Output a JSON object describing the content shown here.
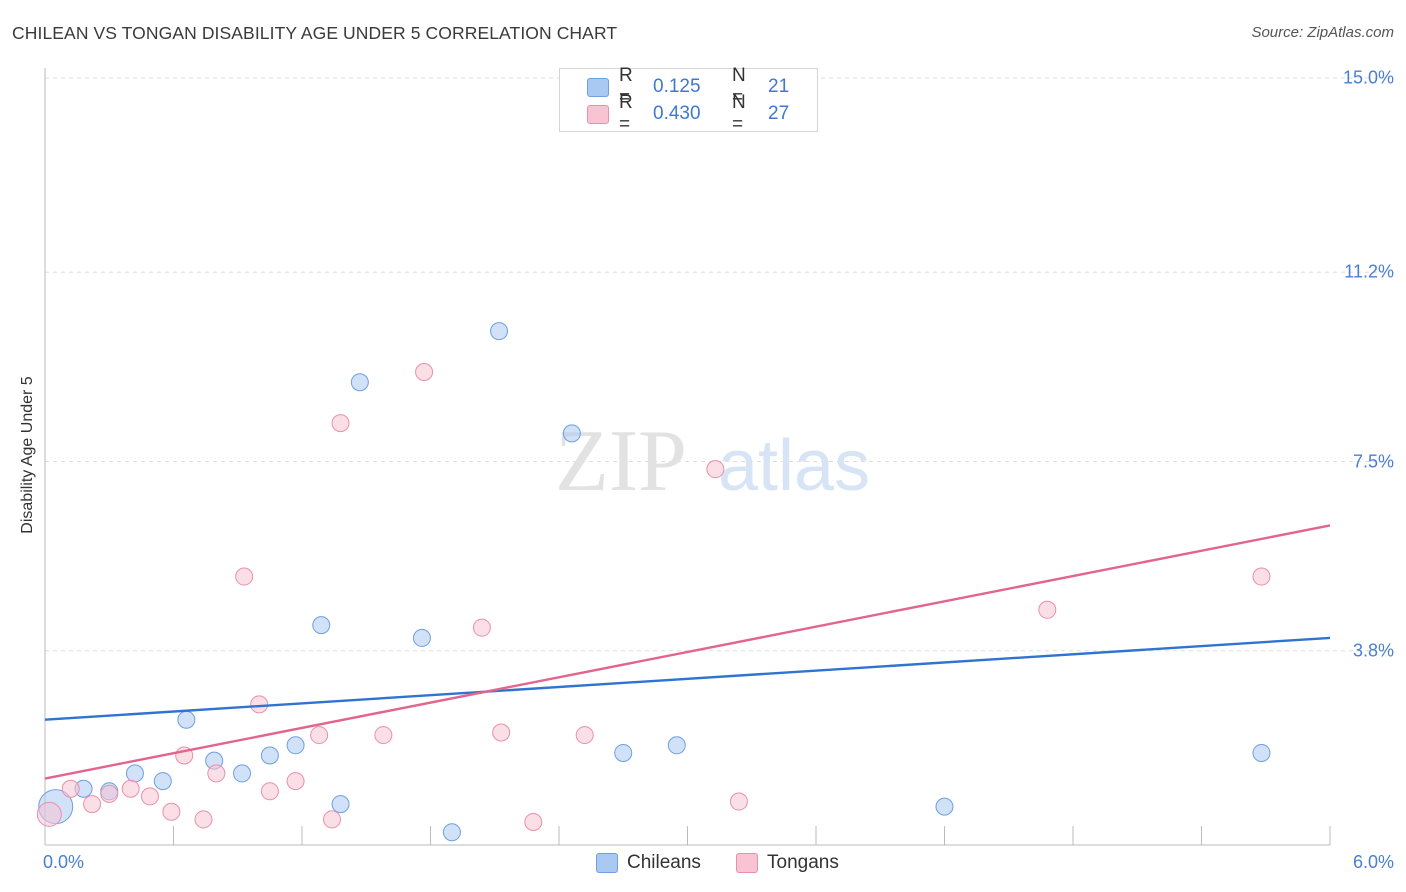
{
  "header": {
    "title": "CHILEAN VS TONGAN DISABILITY AGE UNDER 5 CORRELATION CHART",
    "source": "Source: ZipAtlas.com"
  },
  "watermark": {
    "zip": "ZIP",
    "atlas": "atlas"
  },
  "legend": {
    "rows": [
      {
        "name": "Chileans",
        "r_label": "R =",
        "r_value": "0.125",
        "n_label": "N =",
        "n_value": "21",
        "color": "#a9c8f2",
        "border": "#6f9fe0"
      },
      {
        "name": "Tongans",
        "r_label": "R =",
        "r_value": "0.430",
        "n_label": "N =",
        "n_value": "27",
        "color": "#f8c4d4",
        "border": "#eb8fac"
      }
    ]
  },
  "chart_data": {
    "type": "scatter",
    "title": "CHILEAN VS TONGAN DISABILITY AGE UNDER 5 CORRELATION CHART",
    "xlabel": "",
    "ylabel": "Disability Age Under 5",
    "xlim": [
      0,
      6.0
    ],
    "ylim": [
      0,
      15.0
    ],
    "x_tick_labels": [
      "0.0%",
      "6.0%"
    ],
    "y_ticks": [
      3.8,
      7.5,
      11.2,
      15.0
    ],
    "y_tick_labels": [
      "3.8%",
      "7.5%",
      "11.2%",
      "15.0%"
    ],
    "grid": true,
    "legend_position": "top-center",
    "series": [
      {
        "name": "Chileans",
        "color": "#a9c8f2",
        "line_color": "#2f74d0",
        "trend": [
          [
            0,
            2.45
          ],
          [
            6.0,
            4.05
          ]
        ],
        "points": [
          [
            0.05,
            0.75
          ],
          [
            0.18,
            1.1
          ],
          [
            0.3,
            1.05
          ],
          [
            0.42,
            1.4
          ],
          [
            0.55,
            1.25
          ],
          [
            0.66,
            2.45
          ],
          [
            0.79,
            1.65
          ],
          [
            0.92,
            1.4
          ],
          [
            1.05,
            1.75
          ],
          [
            1.17,
            1.95
          ],
          [
            1.29,
            4.3
          ],
          [
            1.38,
            0.8
          ],
          [
            1.47,
            9.05
          ],
          [
            1.76,
            4.05
          ],
          [
            1.9,
            0.25
          ],
          [
            2.12,
            10.05
          ],
          [
            2.46,
            8.05
          ],
          [
            2.7,
            1.8
          ],
          [
            2.95,
            1.95
          ],
          [
            4.2,
            0.75
          ],
          [
            5.68,
            1.8
          ]
        ]
      },
      {
        "name": "Tongans",
        "color": "#f8c4d4",
        "line_color": "#e2648f",
        "trend": [
          [
            0,
            1.3
          ],
          [
            6.0,
            6.25
          ]
        ],
        "points": [
          [
            0.02,
            0.6
          ],
          [
            0.12,
            1.1
          ],
          [
            0.22,
            0.8
          ],
          [
            0.3,
            1.0
          ],
          [
            0.4,
            1.1
          ],
          [
            0.49,
            0.95
          ],
          [
            0.59,
            0.65
          ],
          [
            0.65,
            1.75
          ],
          [
            0.74,
            0.5
          ],
          [
            0.8,
            1.4
          ],
          [
            0.93,
            5.25
          ],
          [
            1.0,
            2.75
          ],
          [
            1.05,
            1.05
          ],
          [
            1.17,
            1.25
          ],
          [
            1.28,
            2.15
          ],
          [
            1.34,
            0.5
          ],
          [
            1.38,
            8.25
          ],
          [
            1.58,
            2.15
          ],
          [
            1.77,
            9.25
          ],
          [
            2.04,
            4.25
          ],
          [
            2.13,
            2.2
          ],
          [
            2.28,
            0.45
          ],
          [
            2.52,
            2.15
          ],
          [
            3.13,
            7.35
          ],
          [
            3.24,
            0.85
          ],
          [
            4.68,
            4.6
          ],
          [
            5.68,
            5.25
          ]
        ]
      }
    ]
  }
}
